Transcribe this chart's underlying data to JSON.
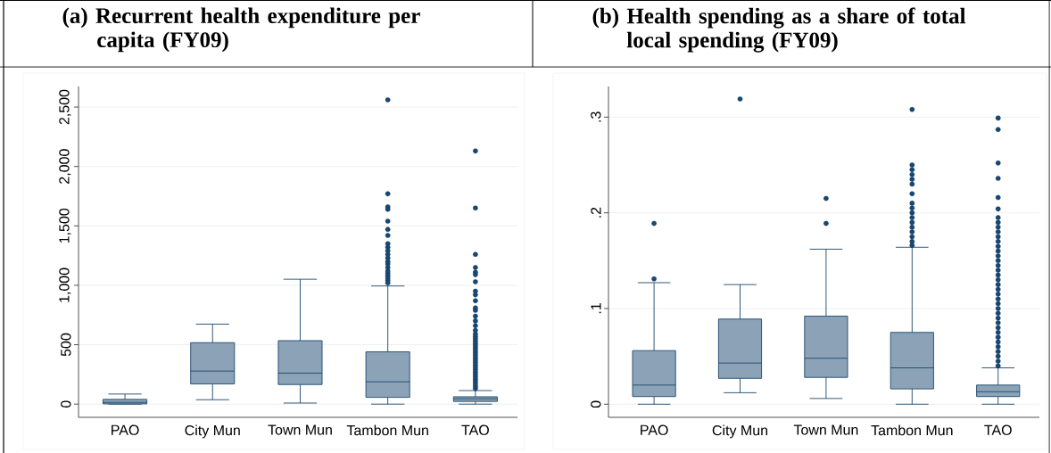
{
  "chart_data": [
    {
      "type": "box",
      "title": "(a)  Recurrent health expenditure per capita (FY09)",
      "color": "#1a476f",
      "grid": "y",
      "categories": [
        "PAO",
        "City Mun",
        "Town Mun",
        "Tambon Mun",
        "TAO"
      ],
      "ylim": [
        -111,
        2673
      ],
      "yticks": [
        0,
        {
          "value": 500,
          "label": "500"
        },
        {
          "value": 1000,
          "label": "1,000"
        },
        {
          "value": 1500,
          "label": "1,500"
        },
        {
          "value": 2000,
          "label": "2,000"
        },
        {
          "value": 2500,
          "label": "2,500"
        }
      ],
      "boxes": [
        {
          "low": 0,
          "q1": 2,
          "median": 15,
          "q3": 40,
          "high": 85
        },
        {
          "low": 37,
          "q1": 170,
          "median": 278,
          "q3": 517,
          "high": 673
        },
        {
          "low": 9,
          "q1": 165,
          "median": 261,
          "q3": 534,
          "high": 1051
        },
        {
          "low": 0,
          "q1": 57,
          "median": 188,
          "q3": 440,
          "high": 994,
          "outliers": [
            1020,
            1040,
            1060,
            1080,
            1100,
            1120,
            1150,
            1180,
            1200,
            1230,
            1260,
            1290,
            1320,
            1350,
            1420,
            1470,
            1540,
            1640,
            1660,
            1770,
            2560
          ]
        },
        {
          "low": 0,
          "q1": 23,
          "median": 45,
          "q3": 62,
          "high": 114,
          "outliers": [
            130,
            150,
            170,
            190,
            210,
            230,
            250,
            270,
            290,
            310,
            330,
            350,
            370,
            390,
            410,
            430,
            450,
            470,
            490,
            510,
            530,
            550,
            570,
            590,
            620,
            660,
            700,
            740,
            790,
            810,
            870,
            920,
            950,
            1030,
            1090,
            1110,
            1150,
            1260,
            1650,
            2130
          ]
        }
      ]
    },
    {
      "type": "box",
      "title": "(b)  Health spending as a share of total local spending (FY09)",
      "color": "#1a476f",
      "grid": "y",
      "categories": [
        "PAO",
        "City Mun",
        "Town Mun",
        "Tambon Mun",
        "TAO"
      ],
      "ylim": [
        -0.0137,
        0.332
      ],
      "yticks": [
        0,
        {
          "value": 0.1,
          "label": ".1"
        },
        {
          "value": 0.2,
          "label": ".2"
        },
        {
          "value": 0.3,
          "label": ".3"
        }
      ],
      "boxes": [
        {
          "low": 0,
          "q1": 0.008,
          "median": 0.02,
          "q3": 0.056,
          "high": 0.127,
          "outliers": [
            0.131,
            0.189
          ]
        },
        {
          "low": 0.012,
          "q1": 0.027,
          "median": 0.043,
          "q3": 0.089,
          "high": 0.125,
          "outliers": [
            0.319
          ]
        },
        {
          "low": 0.006,
          "q1": 0.028,
          "median": 0.048,
          "q3": 0.092,
          "high": 0.162,
          "outliers": [
            0.189,
            0.215
          ]
        },
        {
          "low": 0,
          "q1": 0.016,
          "median": 0.038,
          "q3": 0.075,
          "high": 0.164,
          "outliers": [
            0.166,
            0.17,
            0.175,
            0.18,
            0.185,
            0.19,
            0.195,
            0.2,
            0.205,
            0.21,
            0.22,
            0.23,
            0.235,
            0.24,
            0.245,
            0.25,
            0.308
          ]
        },
        {
          "low": 0,
          "q1": 0.008,
          "median": 0.013,
          "q3": 0.02,
          "high": 0.038,
          "outliers": [
            0.04,
            0.045,
            0.05,
            0.055,
            0.06,
            0.065,
            0.07,
            0.075,
            0.08,
            0.085,
            0.09,
            0.095,
            0.1,
            0.105,
            0.11,
            0.115,
            0.12,
            0.125,
            0.13,
            0.135,
            0.14,
            0.145,
            0.15,
            0.155,
            0.16,
            0.165,
            0.17,
            0.175,
            0.18,
            0.185,
            0.19,
            0.195,
            0.204,
            0.216,
            0.236,
            0.252,
            0.287,
            0.299
          ]
        }
      ]
    }
  ]
}
